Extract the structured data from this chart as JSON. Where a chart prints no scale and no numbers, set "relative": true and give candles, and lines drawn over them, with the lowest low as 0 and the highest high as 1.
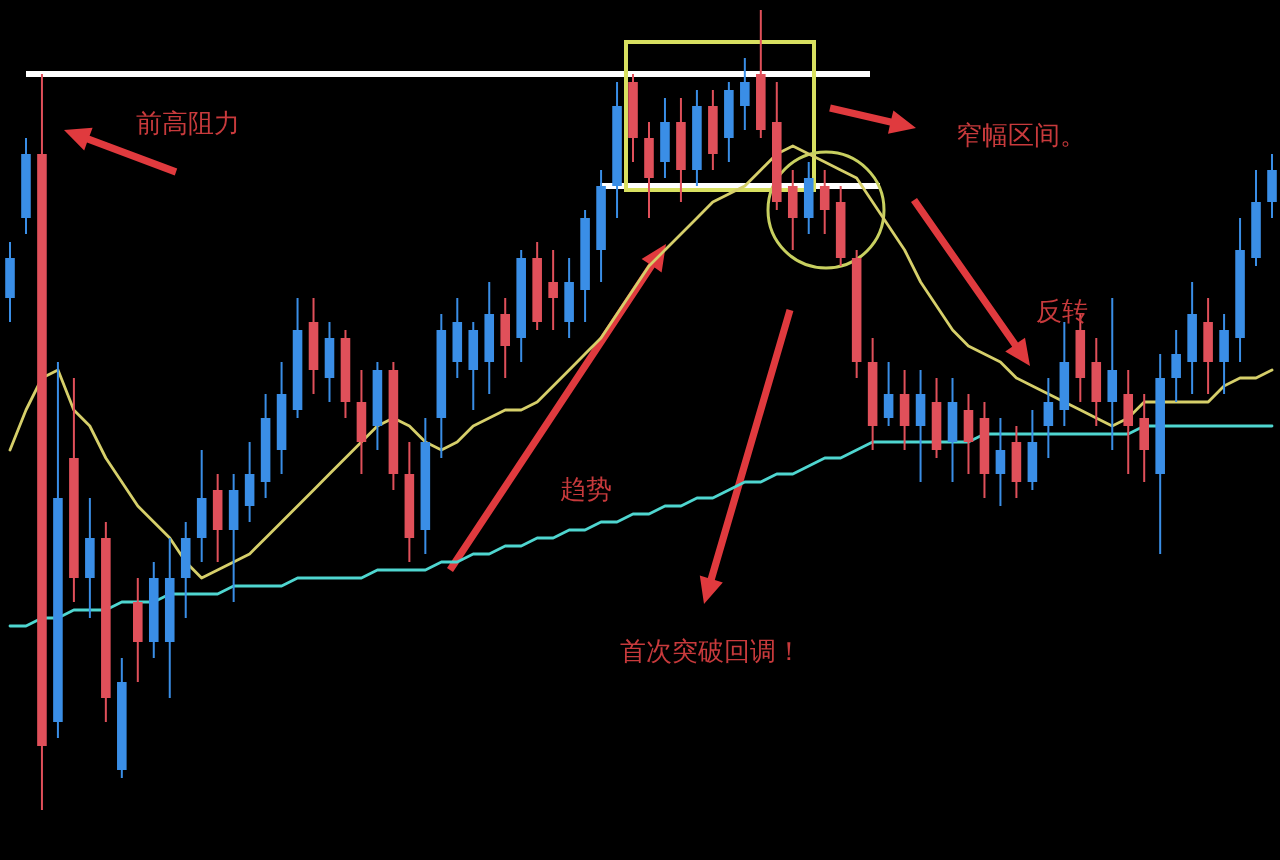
{
  "chart_data": {
    "type": "candlestick",
    "relative": true,
    "categories": [
      null,
      null,
      null,
      null,
      null,
      null,
      null,
      null,
      null,
      null,
      null,
      null,
      null,
      null,
      null,
      null,
      null,
      null,
      null,
      null,
      null,
      null,
      null,
      null,
      null,
      null,
      null,
      null,
      null,
      null,
      null,
      null,
      null,
      null,
      null,
      null,
      null,
      null,
      null,
      null,
      null,
      null,
      null,
      null,
      null,
      null,
      null,
      null,
      null,
      null,
      null,
      null,
      null,
      null,
      null,
      null,
      null,
      null,
      null,
      null,
      null,
      null,
      null,
      null,
      null,
      null,
      null,
      null,
      null,
      null,
      null,
      null,
      null,
      null,
      null,
      null,
      null,
      null,
      null,
      null
    ],
    "ohlc": [
      [
        0.64,
        0.71,
        0.61,
        0.69
      ],
      [
        0.74,
        0.84,
        0.72,
        0.82
      ],
      [
        0.82,
        0.92,
        0,
        0.08
      ],
      [
        0.11,
        0.56,
        0.09,
        0.39
      ],
      [
        0.44,
        0.54,
        0.26,
        0.29
      ],
      [
        0.29,
        0.39,
        0.24,
        0.34
      ],
      [
        0.34,
        0.36,
        0.11,
        0.14
      ],
      [
        0.05,
        0.19,
        0.04,
        0.16
      ],
      [
        0.26,
        0.29,
        0.16,
        0.21
      ],
      [
        0.21,
        0.31,
        0.19,
        0.29
      ],
      [
        0.21,
        0.34,
        0.14,
        0.29
      ],
      [
        0.29,
        0.36,
        0.24,
        0.34
      ],
      [
        0.34,
        0.45,
        0.31,
        0.39
      ],
      [
        0.4,
        0.42,
        0.31,
        0.35
      ],
      [
        0.35,
        0.42,
        0.26,
        0.4
      ],
      [
        0.38,
        0.46,
        0.36,
        0.42
      ],
      [
        0.41,
        0.52,
        0.39,
        0.49
      ],
      [
        0.45,
        0.56,
        0.42,
        0.52
      ],
      [
        0.5,
        0.64,
        0.49,
        0.6
      ],
      [
        0.61,
        0.64,
        0.52,
        0.55
      ],
      [
        0.54,
        0.61,
        0.51,
        0.59
      ],
      [
        0.59,
        0.6,
        0.49,
        0.51
      ],
      [
        0.51,
        0.55,
        0.42,
        0.46
      ],
      [
        0.48,
        0.56,
        0.45,
        0.55
      ],
      [
        0.55,
        0.56,
        0.4,
        0.42
      ],
      [
        0.42,
        0.46,
        0.31,
        0.34
      ],
      [
        0.35,
        0.49,
        0.32,
        0.46
      ],
      [
        0.49,
        0.62,
        0.44,
        0.6
      ],
      [
        0.56,
        0.64,
        0.54,
        0.61
      ],
      [
        0.55,
        0.61,
        0.5,
        0.6
      ],
      [
        0.56,
        0.66,
        0.52,
        0.62
      ],
      [
        0.62,
        0.64,
        0.54,
        0.58
      ],
      [
        0.59,
        0.7,
        0.56,
        0.69
      ],
      [
        0.69,
        0.71,
        0.6,
        0.61
      ],
      [
        0.66,
        0.7,
        0.6,
        0.64
      ],
      [
        0.61,
        0.69,
        0.59,
        0.66
      ],
      [
        0.65,
        0.75,
        0.61,
        0.74
      ],
      [
        0.7,
        0.8,
        0.66,
        0.78
      ],
      [
        0.78,
        0.91,
        0.74,
        0.88
      ],
      [
        0.91,
        0.92,
        0.81,
        0.84
      ],
      [
        0.84,
        0.86,
        0.74,
        0.79
      ],
      [
        0.81,
        0.89,
        0.79,
        0.86
      ],
      [
        0.86,
        0.89,
        0.76,
        0.8
      ],
      [
        0.8,
        0.9,
        0.78,
        0.88
      ],
      [
        0.88,
        0.9,
        0.8,
        0.82
      ],
      [
        0.84,
        0.91,
        0.81,
        0.9
      ],
      [
        0.88,
        0.94,
        0.85,
        0.91
      ],
      [
        0.92,
        1.0,
        0.84,
        0.85
      ],
      [
        0.86,
        0.91,
        0.75,
        0.76
      ],
      [
        0.78,
        0.8,
        0.7,
        0.74
      ],
      [
        0.74,
        0.81,
        0.72,
        0.79
      ],
      [
        0.78,
        0.8,
        0.72,
        0.75
      ],
      [
        0.76,
        0.78,
        0.68,
        0.69
      ],
      [
        0.69,
        0.7,
        0.54,
        0.56
      ],
      [
        0.56,
        0.59,
        0.45,
        0.48
      ],
      [
        0.49,
        0.56,
        0.48,
        0.52
      ],
      [
        0.52,
        0.55,
        0.45,
        0.48
      ],
      [
        0.48,
        0.55,
        0.41,
        0.52
      ],
      [
        0.51,
        0.54,
        0.44,
        0.45
      ],
      [
        0.46,
        0.54,
        0.41,
        0.51
      ],
      [
        0.5,
        0.52,
        0.42,
        0.46
      ],
      [
        0.49,
        0.51,
        0.39,
        0.42
      ],
      [
        0.42,
        0.49,
        0.38,
        0.45
      ],
      [
        0.46,
        0.48,
        0.39,
        0.41
      ],
      [
        0.41,
        0.5,
        0.4,
        0.46
      ],
      [
        0.48,
        0.54,
        0.44,
        0.51
      ],
      [
        0.5,
        0.61,
        0.48,
        0.56
      ],
      [
        0.6,
        0.62,
        0.51,
        0.54
      ],
      [
        0.56,
        0.59,
        0.48,
        0.51
      ],
      [
        0.51,
        0.64,
        0.45,
        0.55
      ],
      [
        0.52,
        0.55,
        0.42,
        0.48
      ],
      [
        0.49,
        0.52,
        0.41,
        0.45
      ],
      [
        0.42,
        0.57,
        0.32,
        0.54
      ],
      [
        0.54,
        0.6,
        0.51,
        0.57
      ],
      [
        0.56,
        0.66,
        0.52,
        0.62
      ],
      [
        0.61,
        0.64,
        0.52,
        0.56
      ],
      [
        0.56,
        0.62,
        0.52,
        0.6
      ],
      [
        0.59,
        0.74,
        0.56,
        0.7
      ],
      [
        0.69,
        0.8,
        0.68,
        0.76
      ],
      [
        0.76,
        0.82,
        0.74,
        0.8
      ]
    ],
    "series": [
      {
        "type": "line",
        "color": "#d6cf6a",
        "values": [
          0.45,
          0.5,
          0.54,
          0.55,
          0.5,
          0.48,
          0.44,
          0.41,
          0.38,
          0.36,
          0.34,
          0.31,
          0.29,
          0.3,
          0.31,
          0.32,
          0.34,
          0.36,
          0.38,
          0.4,
          0.42,
          0.44,
          0.46,
          0.48,
          0.49,
          0.48,
          0.46,
          0.45,
          0.46,
          0.48,
          0.49,
          0.5,
          0.5,
          0.51,
          0.53,
          0.55,
          0.57,
          0.59,
          0.62,
          0.65,
          0.68,
          0.7,
          0.72,
          0.74,
          0.76,
          0.77,
          0.78,
          0.8,
          0.82,
          0.83,
          0.82,
          0.81,
          0.8,
          0.79,
          0.76,
          0.73,
          0.7,
          0.66,
          0.63,
          0.6,
          0.58,
          0.57,
          0.56,
          0.54,
          0.53,
          0.52,
          0.51,
          0.5,
          0.49,
          0.48,
          0.49,
          0.51,
          0.51,
          0.51,
          0.51,
          0.51,
          0.53,
          0.54,
          0.54,
          0.55
        ]
      },
      {
        "type": "line",
        "color": "#4fd6d0",
        "values": [
          0.23,
          0.23,
          0.24,
          0.24,
          0.25,
          0.25,
          0.25,
          0.26,
          0.26,
          0.26,
          0.27,
          0.27,
          0.27,
          0.27,
          0.28,
          0.28,
          0.28,
          0.28,
          0.29,
          0.29,
          0.29,
          0.29,
          0.29,
          0.3,
          0.3,
          0.3,
          0.3,
          0.31,
          0.31,
          0.32,
          0.32,
          0.33,
          0.33,
          0.34,
          0.34,
          0.35,
          0.35,
          0.36,
          0.36,
          0.37,
          0.37,
          0.38,
          0.38,
          0.39,
          0.39,
          0.4,
          0.41,
          0.41,
          0.42,
          0.42,
          0.43,
          0.44,
          0.44,
          0.45,
          0.46,
          0.46,
          0.46,
          0.46,
          0.46,
          0.46,
          0.46,
          0.47,
          0.47,
          0.47,
          0.47,
          0.47,
          0.47,
          0.47,
          0.47,
          0.47,
          0.47,
          0.48,
          0.48,
          0.48,
          0.48,
          0.48,
          0.48,
          0.48,
          0.48,
          0.48
        ]
      }
    ],
    "ref_lines": [
      {
        "axis": "y",
        "value": 0.92,
        "color": "#ffffff"
      },
      {
        "axis": "y",
        "value": 0.78,
        "color": "#ffffff"
      }
    ],
    "annotations": [
      "前高阻力",
      "窄幅区间。",
      "反转",
      "趋势",
      "首次突破回调！"
    ]
  }
}
